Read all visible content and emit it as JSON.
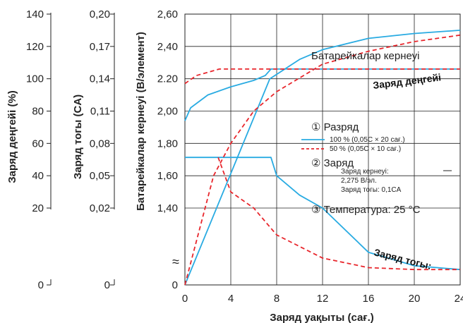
{
  "chart_data": {
    "type": "line",
    "x": {
      "label": "Заряд уақыты (сағ.)",
      "ticks": [
        "0",
        "4",
        "8",
        "12",
        "16",
        "20",
        "24"
      ],
      "range": [
        0,
        24
      ]
    },
    "y_left_level": {
      "label": "Заряд деңгейі (%)",
      "ticks": [
        "140",
        "120",
        "100",
        "80",
        "60",
        "40",
        "20",
        "0"
      ]
    },
    "y_left_current": {
      "label": "Заряд тогы (CA)",
      "ticks": [
        "0,20",
        "0,17",
        "0,14",
        "0,11",
        "0,08",
        "0,05",
        "0,02",
        "0"
      ]
    },
    "y_voltage": {
      "label": "Батарейкалар кернеуі (B/элемент)",
      "ticks": [
        "2,60",
        "2,40",
        "2.20",
        "2,00",
        "1,80",
        "1,60",
        "1,40",
        "0"
      ],
      "break_symbol": "≈"
    },
    "series": [
      {
        "name": "100 % (0,05C × 20 сағ.)",
        "style": "solid",
        "color": "#29ABE2",
        "curves": {
          "voltage": [
            [
              0,
              1.94
            ],
            [
              0.5,
              2.02
            ],
            [
              2,
              2.1
            ],
            [
              4,
              2.15
            ],
            [
              6,
              2.19
            ],
            [
              7,
              2.22
            ],
            [
              7.5,
              2.26
            ],
            [
              24,
              2.26
            ]
          ],
          "current": [
            [
              0,
              0.067
            ],
            [
              7.5,
              0.067
            ],
            [
              8,
              0.05
            ],
            [
              10,
              0.032
            ],
            [
              12,
              0.02
            ],
            [
              16,
              0.0085
            ],
            [
              20,
              0.005
            ],
            [
              24,
              0.004
            ]
          ],
          "level": [
            [
              0,
              0
            ],
            [
              7.4,
              100
            ],
            [
              10,
              112
            ],
            [
              12,
              118
            ],
            [
              16,
              125
            ],
            [
              20,
              128
            ],
            [
              24,
              130
            ]
          ]
        }
      },
      {
        "name": "50 % (0,05C × 10 сағ.)",
        "style": "dashed",
        "color": "#E8262C",
        "curves": {
          "voltage": [
            [
              0,
              2.17
            ],
            [
              1,
              2.22
            ],
            [
              2,
              2.24
            ],
            [
              3,
              2.26
            ],
            [
              24,
              2.26
            ]
          ],
          "current": [
            [
              2.9,
              0.067
            ],
            [
              4,
              0.035
            ],
            [
              6,
              0.02
            ],
            [
              8,
              0.013
            ],
            [
              12,
              0.007
            ],
            [
              16,
              0.0045
            ],
            [
              20,
              0.004
            ],
            [
              24,
              0.004
            ]
          ],
          "level": [
            [
              0,
              0
            ],
            [
              2.5,
              40
            ],
            [
              4,
              60
            ],
            [
              6,
              80
            ],
            [
              8,
              92
            ],
            [
              12,
              109
            ],
            [
              16,
              117
            ],
            [
              20,
              123
            ],
            [
              24,
              127
            ]
          ]
        }
      }
    ],
    "curve_labels": {
      "voltage": "Батарейкалар кернеуі",
      "level": "Заряд деңгейі",
      "current": "Заряд тогы:"
    },
    "annotations": {
      "discharge_title": "① Разряд",
      "charge_title": "② Заряд",
      "charge_voltage_l1": "Заряд кернеуі:",
      "charge_voltage_l2": "2,275 B/эл.",
      "charge_current": "Заряд тогы: 0,1CA",
      "temperature": "③ Температура: 25 °C"
    }
  }
}
